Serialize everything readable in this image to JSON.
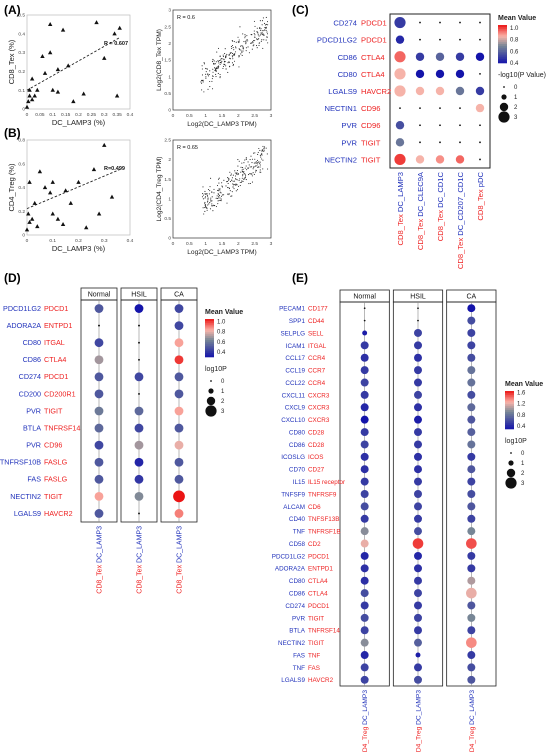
{
  "colors": {
    "ligand": "#2233bb",
    "receptor": "#ee2222",
    "frame": "#333333"
  },
  "chart_data": [
    {
      "panel": "(A)",
      "type": "scatter",
      "variant": "triangles-with-fit",
      "xlabel": "DC_LAMP3 (%)",
      "ylabel": "CD8_Tex (%)",
      "annotation": "R = 0.607",
      "xlim": [
        0,
        0.4
      ],
      "ylim": [
        0,
        0.5
      ],
      "xticks": [
        "0",
        "0.05",
        "0.1",
        "0.15",
        "0.2",
        "0.25",
        "0.3",
        "0.35",
        "0.4"
      ],
      "yticks": [
        "0",
        "0.1",
        "0.2",
        "0.3",
        "0.4",
        "0.5"
      ],
      "fit": [
        [
          0.0,
          0.1
        ],
        [
          0.36,
          0.38
        ]
      ],
      "points": [
        [
          0,
          0.01
        ],
        [
          0.005,
          0.04
        ],
        [
          0.01,
          0.07
        ],
        [
          0.01,
          0.1
        ],
        [
          0.02,
          0.16
        ],
        [
          0.02,
          0.05
        ],
        [
          0.03,
          0.07
        ],
        [
          0.04,
          0.1
        ],
        [
          0.06,
          0.28
        ],
        [
          0.07,
          0.19
        ],
        [
          0.09,
          0.45
        ],
        [
          0.09,
          0.3
        ],
        [
          0.1,
          0.1
        ],
        [
          0.12,
          0.09
        ],
        [
          0.12,
          0.21
        ],
        [
          0.14,
          0.42
        ],
        [
          0.16,
          0.23
        ],
        [
          0.18,
          0.04
        ],
        [
          0.22,
          0.08
        ],
        [
          0.27,
          0.46
        ],
        [
          0.3,
          0.27
        ],
        [
          0.34,
          0.4
        ],
        [
          0.35,
          0.07
        ],
        [
          0.36,
          0.43
        ]
      ]
    },
    {
      "panel": "(A)",
      "type": "scatter",
      "variant": "cloud",
      "xlabel": "Log2(DC_LAMP3 TPM)",
      "ylabel": "Log2(CD8_Tex TPM)",
      "annotation": "R = 0.6",
      "xlim": [
        0,
        3
      ],
      "ylim": [
        0,
        3
      ],
      "xticks": [
        "0",
        "0.5",
        "1",
        "1.5",
        "2",
        "2.5",
        "3"
      ],
      "yticks": [
        "0",
        "0.5",
        "1",
        "1.5",
        "2",
        "2.5",
        "3"
      ],
      "cloud": {
        "n": 260,
        "seed": 11,
        "x0": 0.8,
        "x1": 2.9,
        "slope": 0.72,
        "intercept": 0.35,
        "sd": 0.32
      }
    },
    {
      "panel": "(B)",
      "type": "scatter",
      "variant": "triangles-with-fit",
      "xlabel": "DC_LAMP3 (%)",
      "ylabel": "CD4_Treg (%)",
      "annotation": "R=0.499",
      "xlim": [
        0,
        0.4
      ],
      "ylim": [
        0,
        0.9
      ],
      "xticks": [
        "0",
        "0.1",
        "0.2",
        "0.3",
        "0.4"
      ],
      "yticks": [
        "0",
        "0.2",
        "0.4",
        "0.6",
        "0.8"
      ],
      "fit": [
        [
          0.0,
          0.25
        ],
        [
          0.36,
          0.62
        ]
      ],
      "points": [
        [
          0,
          0.05
        ],
        [
          0.005,
          0.2
        ],
        [
          0.01,
          0.12
        ],
        [
          0.01,
          0.5
        ],
        [
          0.02,
          0.15
        ],
        [
          0.03,
          0.3
        ],
        [
          0.04,
          0.08
        ],
        [
          0.05,
          0.6
        ],
        [
          0.07,
          0.45
        ],
        [
          0.09,
          0.4
        ],
        [
          0.1,
          0.2
        ],
        [
          0.1,
          0.5
        ],
        [
          0.12,
          0.15
        ],
        [
          0.14,
          0.1
        ],
        [
          0.15,
          0.42
        ],
        [
          0.17,
          0.3
        ],
        [
          0.2,
          0.5
        ],
        [
          0.23,
          0.07
        ],
        [
          0.26,
          0.62
        ],
        [
          0.28,
          0.2
        ],
        [
          0.3,
          0.85
        ],
        [
          0.33,
          0.36
        ]
      ]
    },
    {
      "panel": "(B)",
      "type": "scatter",
      "variant": "cloud",
      "xlabel": "Log2(DC_LAMP3 TPM)",
      "ylabel": "Log2(CD4_Treg TPM)",
      "annotation": "R = 0.65",
      "xlim": [
        0,
        3
      ],
      "ylim": [
        0,
        2.5
      ],
      "xticks": [
        "0",
        "0.5",
        "1",
        "1.5",
        "2",
        "2.5",
        "3"
      ],
      "yticks": [
        "0",
        "0.5",
        "1",
        "1.5",
        "2",
        "2.5"
      ],
      "cloud": {
        "n": 260,
        "seed": 23,
        "x0": 0.9,
        "x1": 2.9,
        "slope": 0.65,
        "intercept": 0.25,
        "sd": 0.27
      }
    },
    {
      "panel": "(C)",
      "type": "dotplot",
      "ligands": [
        "CD274",
        "PDCD1LG2",
        "CD86",
        "CD80",
        "LGALS9",
        "NECTIN1",
        "PVR",
        "PVR",
        "NECTIN2"
      ],
      "receptors": [
        "PDCD1",
        "PDCD1",
        "CTLA4",
        "CTLA4",
        "HAVCR2",
        "CD96",
        "CD96",
        "TIGIT",
        "TIGIT"
      ],
      "columns": [
        {
          "source": "DC_LAMP3",
          "target": "CD8_Tex"
        },
        {
          "source": "DC_CLEC9A",
          "target": "CD8_Tex"
        },
        {
          "source": "DC_CD1C",
          "target": "CD8_Tex"
        },
        {
          "source": "DC_CD207_CD1C",
          "target": "CD8_Tex"
        },
        {
          "source": "pDC",
          "target": "CD8_Tex"
        }
      ],
      "value": [
        [
          0.5,
          null,
          null,
          null,
          null
        ],
        [
          0.45,
          null,
          null,
          null,
          null
        ],
        [
          0.95,
          0.5,
          0.6,
          0.5,
          0.2
        ],
        [
          0.85,
          0.2,
          0.25,
          0.25,
          null
        ],
        [
          0.85,
          0.85,
          0.85,
          0.65,
          0.5
        ],
        [
          null,
          null,
          null,
          null,
          0.85
        ],
        [
          0.55,
          null,
          null,
          null,
          null
        ],
        [
          0.65,
          null,
          null,
          null,
          null
        ],
        [
          1.0,
          0.85,
          0.9,
          0.95,
          null
        ]
      ],
      "size": [
        [
          3,
          0,
          0,
          0,
          0
        ],
        [
          2,
          0,
          0,
          0,
          0
        ],
        [
          3,
          2,
          2,
          2,
          2
        ],
        [
          3,
          2,
          2,
          2,
          0
        ],
        [
          3,
          2,
          2,
          2,
          2
        ],
        [
          0,
          0,
          0,
          0,
          2
        ],
        [
          2,
          0,
          0,
          0,
          0
        ],
        [
          2,
          0,
          0,
          0,
          0
        ],
        [
          3,
          2,
          2,
          2,
          0
        ]
      ],
      "legend": {
        "color_title": "Mean Value",
        "color_ticks": [
          "1.0",
          "0.8",
          "0.6",
          "0.4"
        ],
        "color_range": [
          0.4,
          1.05
        ],
        "size_title": "-log10(P Value)",
        "size_levels": [
          "0",
          "1",
          "2",
          "3"
        ]
      }
    },
    {
      "panel": "(D)",
      "type": "dotplot",
      "groups": [
        "Normal",
        "HSIL",
        "CA"
      ],
      "column_label": "DC_LAMP3  CD8_Tex",
      "column_source": "DC_LAMP3",
      "column_target": "CD8_Tex",
      "ligands": [
        "PDCD1LG2",
        "ADORA2A",
        "CD80",
        "CD86",
        "CD274",
        "CD200",
        "PVR",
        "BTLA",
        "PVR",
        "TNFRSF10B",
        "FAS",
        "NECTIN2",
        "LGALS9"
      ],
      "receptors": [
        "PDCD1",
        "ENTPD1",
        "ITGAL",
        "CTLA4",
        "PDCD1",
        "CD200R1",
        "TIGIT",
        "TNFRSF14",
        "CD96",
        "FASLG",
        "FASLG",
        "TIGIT",
        "HAVCR2"
      ],
      "value": [
        [
          0.5,
          0.3,
          0.45
        ],
        [
          null,
          null,
          0.45
        ],
        [
          0.45,
          null,
          0.85
        ],
        [
          0.7,
          null,
          1.0
        ],
        [
          0.5,
          0.45,
          0.5
        ],
        [
          0.5,
          null,
          0.5
        ],
        [
          0.6,
          0.55,
          0.85
        ],
        [
          0.55,
          0.45,
          0.5
        ],
        [
          0.45,
          0.7,
          0.8
        ],
        [
          0.5,
          0.35,
          0.5
        ],
        [
          0.5,
          0.4,
          0.5
        ],
        [
          0.85,
          0.65,
          1.05
        ],
        [
          0.5,
          null,
          0.9
        ]
      ],
      "size": [
        [
          2,
          2,
          2
        ],
        [
          0,
          0,
          2
        ],
        [
          2,
          0,
          2
        ],
        [
          2,
          0,
          2
        ],
        [
          2,
          2,
          2
        ],
        [
          2,
          0,
          2
        ],
        [
          2,
          2,
          2
        ],
        [
          2,
          2,
          2
        ],
        [
          2,
          2,
          2
        ],
        [
          2,
          2,
          2
        ],
        [
          2,
          2,
          2
        ],
        [
          2,
          2,
          3
        ],
        [
          2,
          0,
          2
        ]
      ],
      "legend": {
        "color_title": "Mean Value",
        "color_ticks": [
          "1.0",
          "0.8",
          "0.6",
          "0.4"
        ],
        "color_range": [
          0.3,
          1.05
        ],
        "size_title": "log10P",
        "size_levels": [
          "0",
          "1",
          "2",
          "3"
        ]
      }
    },
    {
      "panel": "(E)",
      "type": "dotplot",
      "groups": [
        "Normal",
        "HSIL",
        "CA"
      ],
      "column_label": "DC_LAMP3  CD4_Treg",
      "column_source": "DC_LAMP3",
      "column_target": "CD4_Treg",
      "ligands": [
        "PECAM1",
        "SPP1",
        "SELPLG",
        "ICAM1",
        "CCL17",
        "CCL19",
        "CCL22",
        "CXCL11",
        "CXCL9",
        "CXCL10",
        "CD80",
        "CD86",
        "ICOSLG",
        "CD70",
        "IL15",
        "TNFSF9",
        "ALCAM",
        "CD40",
        "TNF",
        "CD58",
        "PDCD1LG2",
        "ADORA2A",
        "CD80",
        "CD86",
        "CD274",
        "PVR",
        "BTLA",
        "NECTIN2",
        "FAS",
        "TNF",
        "LGALS9"
      ],
      "receptors": [
        "CD177",
        "CD44",
        "SELL",
        "ITGAL",
        "CCR4",
        "CCR7",
        "CCR4",
        "CXCR3",
        "CXCR3",
        "CXCR3",
        "CD28",
        "CD28",
        "ICOS",
        "CD27",
        "IL15 receptor",
        "TNFRSF9",
        "CD6",
        "TNFSF13B",
        "TNFRSF1B",
        "CD2",
        "PDCD1",
        "ENTPD1",
        "CTLA4",
        "CTLA4",
        "PDCD1",
        "TIGIT",
        "TNFRSF14",
        "TIGIT",
        "TNF",
        "FAS",
        "HAVCR2"
      ],
      "value": [
        [
          null,
          null,
          0.3
        ],
        [
          null,
          null,
          0.6
        ],
        [
          0.35,
          0.55,
          0.55
        ],
        [
          0.5,
          0.5,
          0.55
        ],
        [
          0.45,
          0.45,
          0.6
        ],
        [
          0.5,
          0.5,
          0.8
        ],
        [
          0.55,
          0.5,
          0.8
        ],
        [
          0.5,
          0.55,
          0.6
        ],
        [
          0.4,
          0.45,
          0.75
        ],
        [
          0.3,
          0.35,
          0.65
        ],
        [
          0.5,
          0.5,
          0.7
        ],
        [
          0.55,
          0.5,
          0.8
        ],
        [
          0.45,
          0.45,
          0.5
        ],
        [
          0.45,
          0.45,
          0.65
        ],
        [
          0.5,
          0.5,
          0.55
        ],
        [
          0.55,
          0.55,
          0.6
        ],
        [
          0.6,
          0.55,
          0.65
        ],
        [
          0.5,
          0.5,
          0.55
        ],
        [
          0.95,
          0.6,
          0.9
        ],
        [
          1.2,
          1.55,
          1.5
        ],
        [
          0.4,
          0.4,
          0.5
        ],
        [
          0.45,
          0.45,
          0.5
        ],
        [
          0.45,
          0.5,
          1.05
        ],
        [
          0.6,
          0.55,
          1.2
        ],
        [
          0.5,
          0.5,
          0.65
        ],
        [
          0.6,
          0.55,
          0.9
        ],
        [
          0.55,
          0.5,
          0.55
        ],
        [
          0.95,
          0.7,
          1.35
        ],
        [
          0.4,
          0.35,
          0.5
        ],
        [
          0.55,
          0.5,
          0.6
        ],
        [
          0.55,
          0.6,
          0.65
        ]
      ],
      "size": [
        [
          0,
          0,
          2
        ],
        [
          0,
          0,
          2
        ],
        [
          1,
          2,
          2
        ],
        [
          2,
          2,
          2
        ],
        [
          2,
          2,
          2
        ],
        [
          2,
          2,
          2
        ],
        [
          2,
          2,
          2
        ],
        [
          2,
          2,
          2
        ],
        [
          2,
          2,
          2
        ],
        [
          2,
          2,
          2
        ],
        [
          2,
          2,
          2
        ],
        [
          2,
          2,
          2
        ],
        [
          2,
          2,
          2
        ],
        [
          2,
          2,
          2
        ],
        [
          2,
          2,
          2
        ],
        [
          2,
          2,
          2
        ],
        [
          2,
          2,
          2
        ],
        [
          2,
          2,
          2
        ],
        [
          2,
          2,
          2
        ],
        [
          2,
          3,
          3
        ],
        [
          2,
          2,
          2
        ],
        [
          2,
          2,
          2
        ],
        [
          2,
          2,
          2
        ],
        [
          2,
          2,
          3
        ],
        [
          2,
          2,
          2
        ],
        [
          2,
          2,
          2
        ],
        [
          2,
          2,
          2
        ],
        [
          2,
          2,
          3
        ],
        [
          2,
          1,
          2
        ],
        [
          2,
          2,
          2
        ],
        [
          2,
          2,
          2
        ]
      ],
      "legend": {
        "color_title": "Mean Value",
        "color_ticks": [
          "1.6",
          "1.2",
          "0.8",
          "0.4"
        ],
        "color_range": [
          0.3,
          1.65
        ],
        "size_title": "log10P",
        "size_levels": [
          "0",
          "1",
          "2",
          "3"
        ]
      }
    }
  ]
}
